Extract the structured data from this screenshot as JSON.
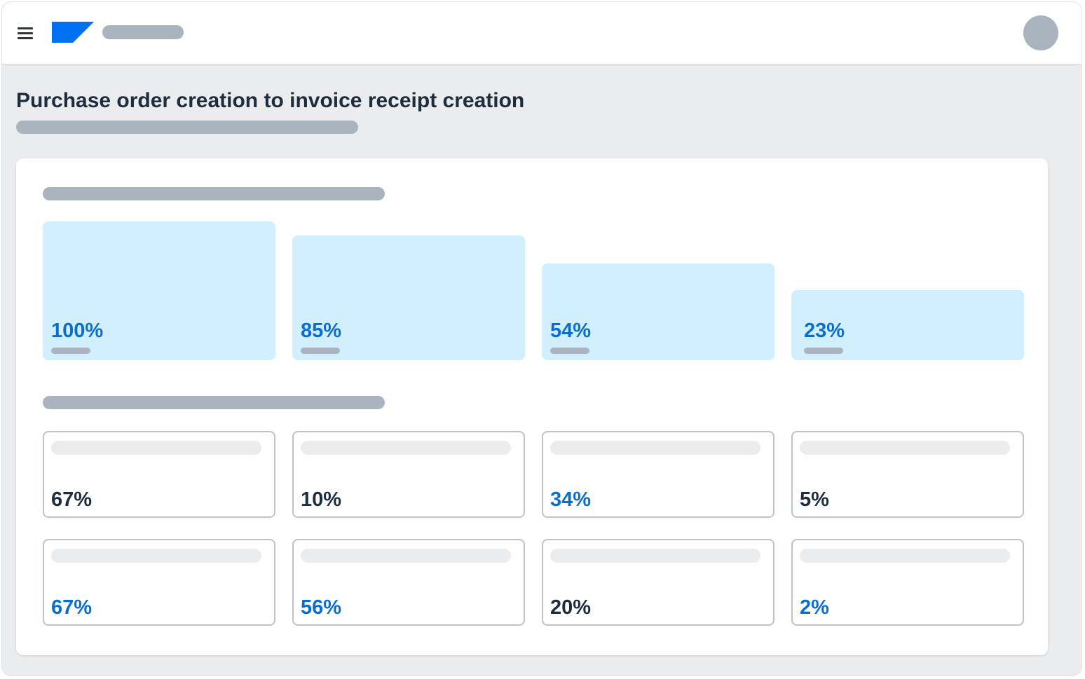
{
  "app": {
    "logo_icon": "brand-logo-icon",
    "menu_icon": "menu-hamburger-icon",
    "brand_color": "#0070f2"
  },
  "page": {
    "title": "Purchase order creation to invoice receipt creation"
  },
  "funnel": {
    "accent_color": "#0a6ed1",
    "tile_color": "#d1efff",
    "steps": [
      {
        "value": "100%",
        "fraction": 1.0
      },
      {
        "value": "85%",
        "fraction": 0.85
      },
      {
        "value": "54%",
        "fraction": 0.54
      },
      {
        "value": "23%",
        "fraction": 0.23
      }
    ]
  },
  "metrics": {
    "rows": [
      [
        {
          "value": "67%",
          "color": "#1d2d3e"
        },
        {
          "value": "10%",
          "color": "#1d2d3e"
        },
        {
          "value": "34%",
          "color": "#0a6ed1"
        },
        {
          "value": "5%",
          "color": "#1d2d3e"
        }
      ],
      [
        {
          "value": "67%",
          "color": "#0a6ed1"
        },
        {
          "value": "56%",
          "color": "#0a6ed1"
        },
        {
          "value": "20%",
          "color": "#1d2d3e"
        },
        {
          "value": "2%",
          "color": "#0a6ed1"
        }
      ]
    ]
  }
}
